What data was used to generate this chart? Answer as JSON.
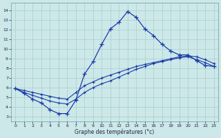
{
  "xlabel": "Graphe des températures (°c)",
  "bg_color": "#cce8e8",
  "line_color": "#1a3aaa",
  "grid_color": "#aacccc",
  "x_ticks": [
    0,
    1,
    2,
    3,
    4,
    5,
    6,
    7,
    8,
    9,
    10,
    11,
    12,
    13,
    14,
    15,
    16,
    17,
    18,
    19,
    20,
    21,
    22,
    23
  ],
  "y_ticks": [
    3,
    4,
    5,
    6,
    7,
    8,
    9,
    10,
    11,
    12,
    13,
    14
  ],
  "ylim": [
    2.5,
    14.8
  ],
  "xlim": [
    -0.5,
    23.5
  ],
  "curve1_x": [
    0,
    1,
    2,
    3,
    4,
    5,
    6,
    7,
    8,
    9,
    10,
    11,
    12,
    13,
    14,
    15,
    16,
    17,
    18,
    19,
    20,
    21,
    22,
    23
  ],
  "curve1_y": [
    5.9,
    5.4,
    4.8,
    4.4,
    3.7,
    3.3,
    3.3,
    4.7,
    7.4,
    8.7,
    10.5,
    12.1,
    12.8,
    13.9,
    13.3,
    12.1,
    11.4,
    10.5,
    9.8,
    9.4,
    9.4,
    8.8,
    8.3,
    8.2
  ],
  "curve2_x": [
    0,
    1,
    2,
    3,
    4,
    5,
    6,
    7,
    8,
    9,
    10,
    11,
    12,
    13,
    14,
    15,
    16,
    17,
    18,
    19,
    20,
    21,
    22,
    23
  ],
  "curve2_y": [
    5.9,
    5.5,
    5.2,
    4.9,
    4.6,
    4.4,
    4.3,
    4.8,
    5.5,
    6.0,
    6.4,
    6.7,
    7.1,
    7.5,
    7.9,
    8.2,
    8.5,
    8.7,
    8.9,
    9.1,
    9.2,
    8.9,
    8.6,
    8.2
  ],
  "curve3_x": [
    0,
    1,
    2,
    3,
    4,
    5,
    6,
    7,
    8,
    9,
    10,
    11,
    12,
    13,
    14,
    15,
    16,
    17,
    18,
    19,
    20,
    21,
    22,
    23
  ],
  "curve3_y": [
    5.9,
    5.7,
    5.5,
    5.3,
    5.1,
    4.9,
    4.8,
    5.5,
    6.2,
    6.6,
    7.0,
    7.3,
    7.6,
    7.9,
    8.2,
    8.4,
    8.6,
    8.8,
    9.0,
    9.2,
    9.3,
    9.2,
    8.9,
    8.5
  ]
}
